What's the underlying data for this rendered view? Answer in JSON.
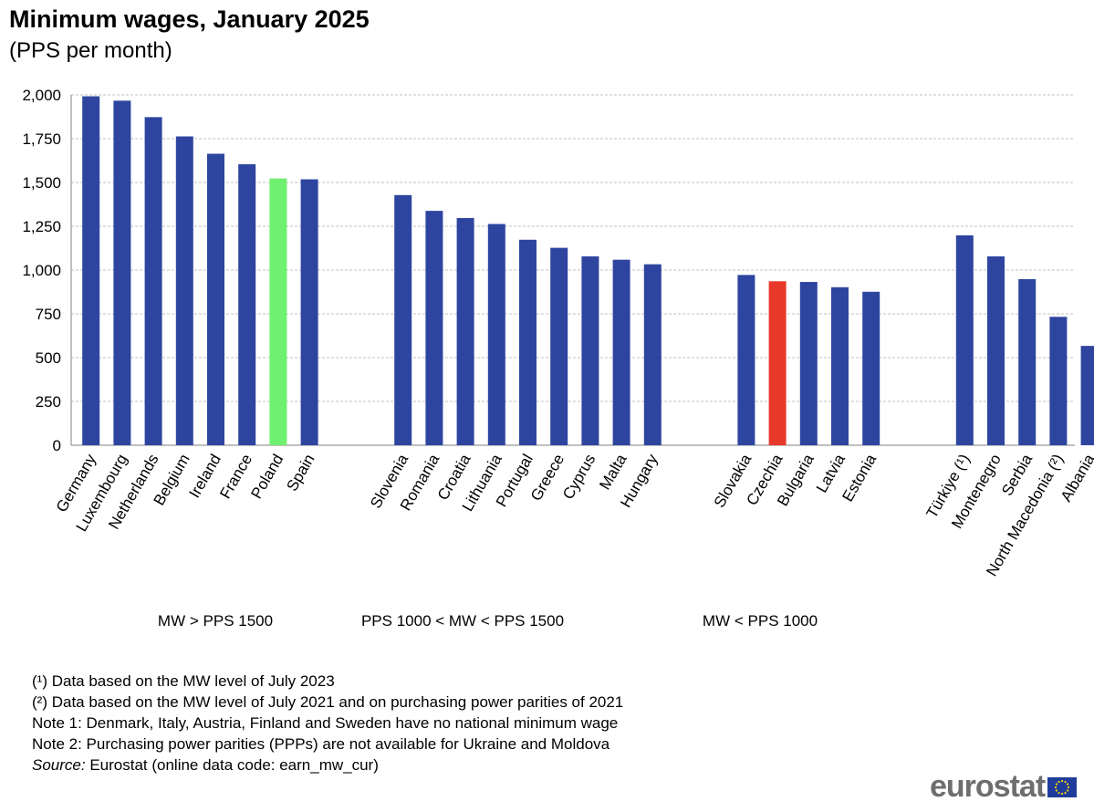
{
  "chart_data": {
    "type": "bar",
    "title": "Minimum wages, January 2025",
    "subtitle": "(PPS per month)",
    "ylim": [
      0,
      2000
    ],
    "yticks": [
      "0",
      "250",
      "500",
      "750",
      "1,000",
      "1,250",
      "1,500",
      "1,750",
      "2,000"
    ],
    "ytick_values": [
      0,
      250,
      500,
      750,
      1000,
      1250,
      1500,
      1750,
      2000
    ],
    "grid": true,
    "colors": {
      "default": "#2e45a0",
      "highlight_green": "#70f070",
      "highlight_red": "#e8382a",
      "grid": "#c0c0c0"
    },
    "groups": [
      {
        "label": "MW > PPS 1500",
        "bars": [
          {
            "category": "Germany",
            "value": 1992,
            "color": "default"
          },
          {
            "category": "Luxembourg",
            "value": 1967,
            "color": "default"
          },
          {
            "category": "Netherlands",
            "value": 1873,
            "color": "default"
          },
          {
            "category": "Belgium",
            "value": 1763,
            "color": "default"
          },
          {
            "category": "Ireland",
            "value": 1664,
            "color": "default"
          },
          {
            "category": "France",
            "value": 1604,
            "color": "default"
          },
          {
            "category": "Poland",
            "value": 1523,
            "color": "highlight_green"
          },
          {
            "category": "Spain",
            "value": 1518,
            "color": "default"
          }
        ]
      },
      {
        "label": "PPS 1000 < MW < PPS 1500",
        "bars": [
          {
            "category": "Slovenia",
            "value": 1428,
            "color": "default"
          },
          {
            "category": "Romania",
            "value": 1338,
            "color": "default"
          },
          {
            "category": "Croatia",
            "value": 1297,
            "color": "default"
          },
          {
            "category": "Lithuania",
            "value": 1263,
            "color": "default"
          },
          {
            "category": "Portugal",
            "value": 1173,
            "color": "default"
          },
          {
            "category": "Greece",
            "value": 1127,
            "color": "default"
          },
          {
            "category": "Cyprus",
            "value": 1078,
            "color": "default"
          },
          {
            "category": "Malta",
            "value": 1059,
            "color": "default"
          },
          {
            "category": "Hungary",
            "value": 1033,
            "color": "default"
          }
        ]
      },
      {
        "label": "MW < PPS 1000",
        "bars": [
          {
            "category": "Slovakia",
            "value": 972,
            "color": "default"
          },
          {
            "category": "Czechia",
            "value": 936,
            "color": "highlight_red"
          },
          {
            "category": "Bulgaria",
            "value": 932,
            "color": "default"
          },
          {
            "category": "Latvia",
            "value": 902,
            "color": "default"
          },
          {
            "category": "Estonia",
            "value": 876,
            "color": "default"
          }
        ]
      },
      {
        "label": "",
        "bars": [
          {
            "category": "Türkiye (¹)",
            "value": 1198,
            "color": "default"
          },
          {
            "category": "Montenegro",
            "value": 1078,
            "color": "default"
          },
          {
            "category": "Serbia",
            "value": 948,
            "color": "default"
          },
          {
            "category": "North Macedonia (²)",
            "value": 733,
            "color": "default"
          },
          {
            "category": "Albania",
            "value": 567,
            "color": "default"
          }
        ]
      }
    ]
  },
  "notes": {
    "note1": "(¹) Data based on the MW level of July 2023",
    "note2": "(²) Data based on the MW level of July 2021 and on purchasing power parities of 2021",
    "note3": "Note 1: Denmark, Italy, Austria, Finland and Sweden have no national minimum wage",
    "note4": "Note 2: Purchasing power parities (PPPs) are not available for Ukraine and Moldova",
    "source_label": "Source:",
    "source_text": " Eurostat (online data code: earn_mw_cur)"
  },
  "logo": {
    "text": "eurostat"
  }
}
